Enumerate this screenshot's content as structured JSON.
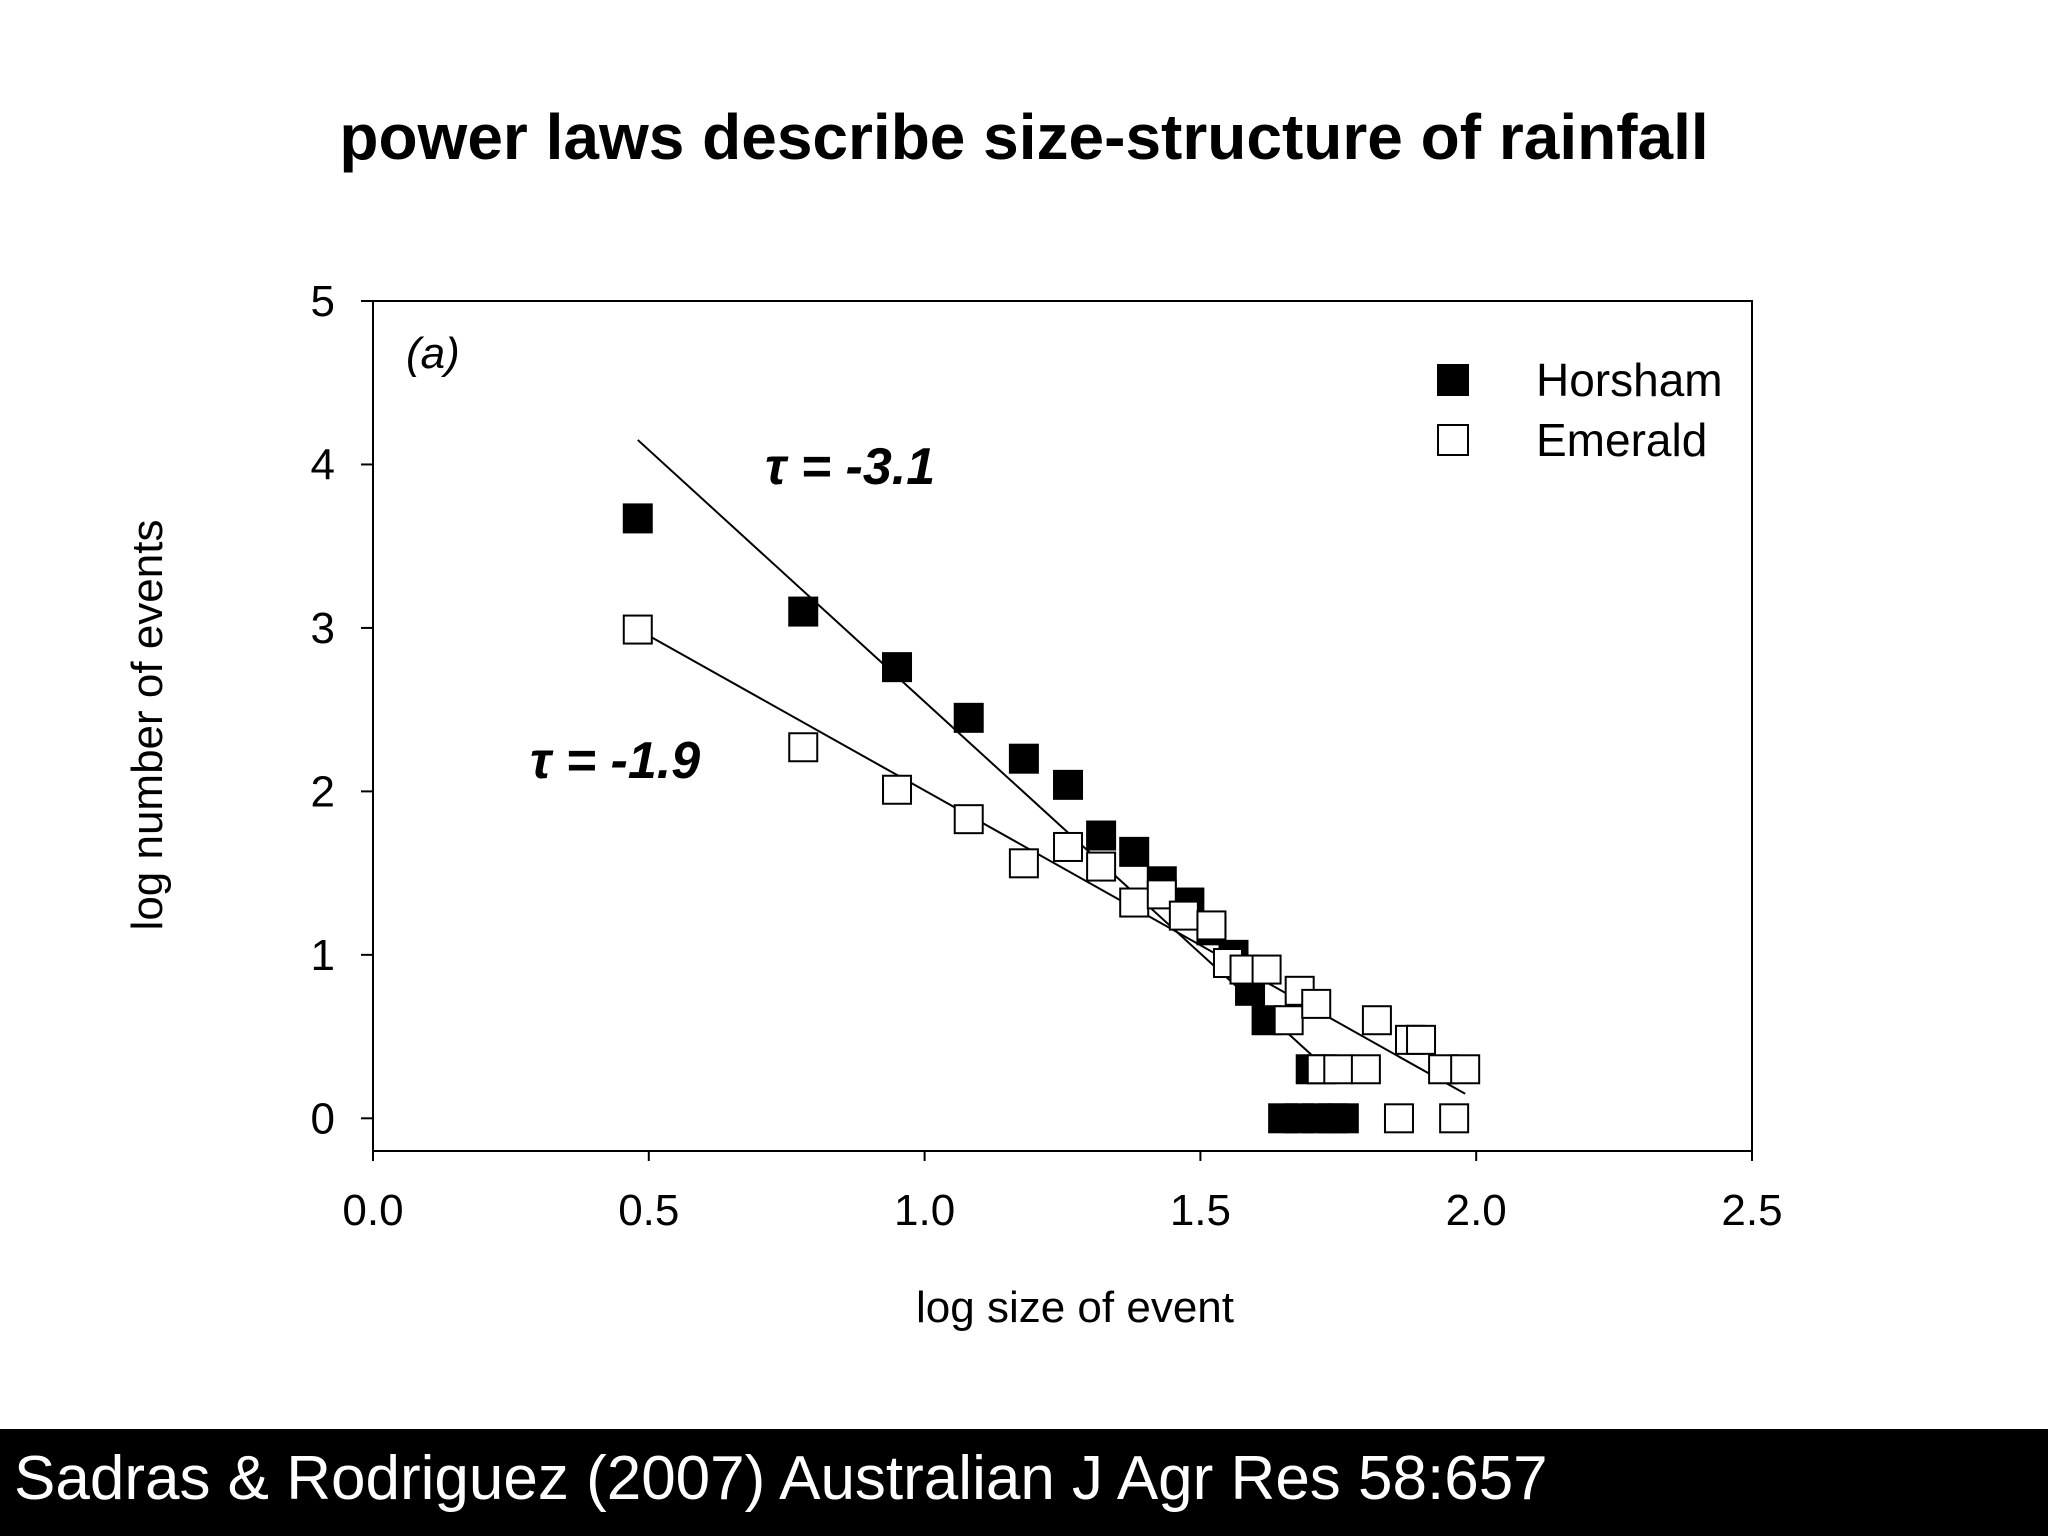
{
  "slide": {
    "title": "power laws describe size-structure of rainfall",
    "citation": "Sadras & Rodriguez (2007) Australian J Agr Res 58:657"
  },
  "chart_data": {
    "type": "scatter",
    "panel_label": "(a)",
    "xlabel": "log size of event",
    "ylabel": "log number of events",
    "xlim": [
      0,
      2.5
    ],
    "ylim": [
      -0.2,
      5
    ],
    "x_ticks": [
      "0.0",
      "0.5",
      "1.0",
      "1.5",
      "2.0",
      "2.5"
    ],
    "y_ticks": [
      "0",
      "1",
      "2",
      "3",
      "4",
      "5"
    ],
    "grid": false,
    "legend_position": "top-right",
    "series": [
      {
        "name": "Horsham",
        "marker": "filled-square",
        "color": "#000000",
        "points": [
          [
            0.48,
            3.67
          ],
          [
            0.78,
            3.1
          ],
          [
            0.95,
            2.76
          ],
          [
            1.08,
            2.45
          ],
          [
            1.18,
            2.2
          ],
          [
            1.26,
            2.04
          ],
          [
            1.32,
            1.73
          ],
          [
            1.38,
            1.63
          ],
          [
            1.43,
            1.45
          ],
          [
            1.48,
            1.32
          ],
          [
            1.52,
            1.15
          ],
          [
            1.56,
            1.0
          ],
          [
            1.59,
            0.78
          ],
          [
            1.62,
            0.6
          ],
          [
            1.7,
            0.3
          ],
          [
            1.65,
            0.0
          ],
          [
            1.68,
            0.0
          ],
          [
            1.71,
            0.0
          ],
          [
            1.74,
            0.0
          ],
          [
            1.76,
            0.0
          ]
        ],
        "fit": {
          "label": "τ = -3.1",
          "x": [
            0.48,
            1.73
          ],
          "y": [
            4.15,
            0.3
          ]
        }
      },
      {
        "name": "Emerald",
        "marker": "open-square",
        "color": "#000000",
        "points": [
          [
            0.48,
            2.99
          ],
          [
            0.78,
            2.27
          ],
          [
            0.95,
            2.01
          ],
          [
            1.08,
            1.83
          ],
          [
            1.18,
            1.56
          ],
          [
            1.26,
            1.66
          ],
          [
            1.32,
            1.54
          ],
          [
            1.38,
            1.32
          ],
          [
            1.43,
            1.37
          ],
          [
            1.47,
            1.24
          ],
          [
            1.52,
            1.18
          ],
          [
            1.55,
            0.95
          ],
          [
            1.58,
            0.91
          ],
          [
            1.62,
            0.91
          ],
          [
            1.66,
            0.6
          ],
          [
            1.68,
            0.78
          ],
          [
            1.71,
            0.7
          ],
          [
            1.72,
            0.3
          ],
          [
            1.75,
            0.3
          ],
          [
            1.8,
            0.3
          ],
          [
            1.82,
            0.6
          ],
          [
            1.88,
            0.48
          ],
          [
            1.9,
            0.48
          ],
          [
            1.94,
            0.3
          ],
          [
            1.98,
            0.3
          ],
          [
            1.86,
            0.0
          ],
          [
            1.96,
            0.0
          ]
        ],
        "fit": {
          "label": "τ = -1.9",
          "x": [
            0.48,
            1.98
          ],
          "y": [
            2.99,
            0.15
          ]
        }
      }
    ]
  }
}
